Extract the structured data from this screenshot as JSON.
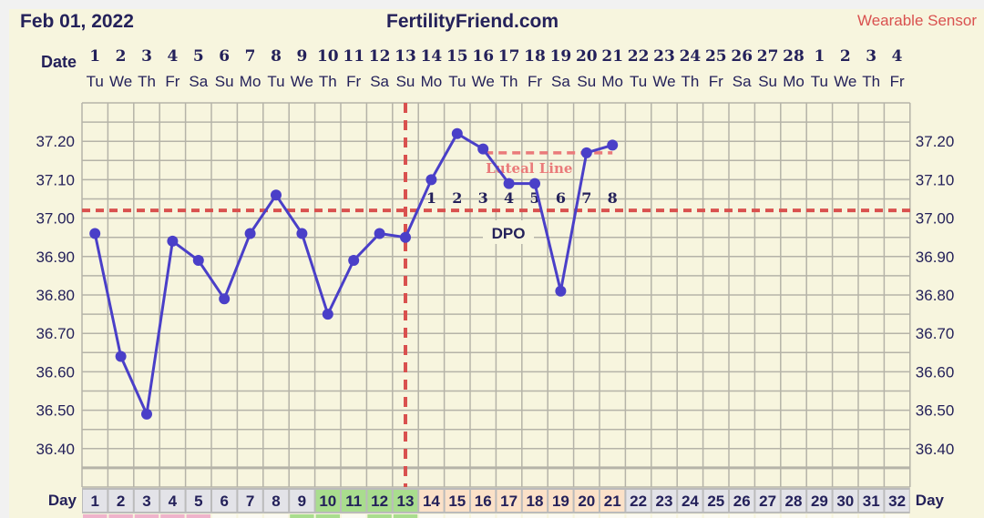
{
  "header": {
    "date": "Feb 01, 2022",
    "site": "FertilityFriend.com",
    "sensor": "Wearable Sensor"
  },
  "colors": {
    "text": "#24215a",
    "series": "#4a3fc8",
    "coverline": "#d9514f",
    "luteal": "#ea7a7a",
    "sensor": "#d9514f",
    "fertile_green": "#a9dd8e",
    "luteal_peach": "#fbe1c8",
    "day_gray": "#e3e3e8",
    "menses_pink": "#efb3cb"
  },
  "chart_data": {
    "type": "line",
    "title": "",
    "row_labels": {
      "date": "Date",
      "day": "Day"
    },
    "dates": [
      "1",
      "2",
      "3",
      "4",
      "5",
      "6",
      "7",
      "8",
      "9",
      "10",
      "11",
      "12",
      "13",
      "14",
      "15",
      "16",
      "17",
      "18",
      "19",
      "20",
      "21",
      "22",
      "23",
      "24",
      "25",
      "26",
      "27",
      "28",
      "1",
      "2",
      "3",
      "4"
    ],
    "weekdays": [
      "Tu",
      "We",
      "Th",
      "Fr",
      "Sa",
      "Su",
      "Mo",
      "Tu",
      "We",
      "Th",
      "Fr",
      "Sa",
      "Su",
      "Mo",
      "Tu",
      "We",
      "Th",
      "Fr",
      "Sa",
      "Su",
      "Mo",
      "Tu",
      "We",
      "Th",
      "Fr",
      "Sa",
      "Su",
      "Mo",
      "Tu",
      "We",
      "Th",
      "Fr"
    ],
    "days": [
      1,
      2,
      3,
      4,
      5,
      6,
      7,
      8,
      9,
      10,
      11,
      12,
      13,
      14,
      15,
      16,
      17,
      18,
      19,
      20,
      21,
      22,
      23,
      24,
      25,
      26,
      27,
      28,
      29,
      30,
      31,
      32
    ],
    "day_cell_types": [
      "gray",
      "gray",
      "gray",
      "gray",
      "gray",
      "gray",
      "gray",
      "gray",
      "gray",
      "green",
      "green",
      "green",
      "green",
      "peach",
      "peach",
      "peach",
      "peach",
      "peach",
      "peach",
      "peach",
      "peach",
      "gray",
      "gray",
      "gray",
      "gray",
      "gray",
      "gray",
      "gray",
      "gray",
      "gray",
      "gray",
      "gray"
    ],
    "bottom_strip_types": [
      "pink",
      "pink",
      "pink",
      "pink",
      "pink",
      "white",
      "white",
      "white",
      "green",
      "green",
      "white",
      "green",
      "green",
      "white",
      "white",
      "white",
      "white",
      "white",
      "white",
      "white",
      "white",
      "white",
      "white",
      "white",
      "white",
      "white",
      "white",
      "white",
      "white",
      "white",
      "white",
      "white"
    ],
    "y_ticks": [
      "37.20",
      "37.10",
      "37.00",
      "36.90",
      "36.80",
      "36.70",
      "36.60",
      "36.50",
      "36.40"
    ],
    "ylim": [
      36.3,
      37.3
    ],
    "grid": true,
    "temperatures": [
      36.96,
      36.64,
      36.49,
      36.94,
      36.89,
      36.79,
      36.96,
      37.06,
      36.96,
      36.75,
      36.89,
      36.96,
      36.95,
      37.1,
      37.22,
      37.18,
      37.09,
      37.09,
      36.81,
      37.17,
      37.19
    ],
    "coverline": 37.02,
    "ovulation_day": 13,
    "luteal_line": {
      "label": "Luteal Line",
      "value": 37.17,
      "from_day": 16,
      "to_day": 21
    },
    "dpo": {
      "label": "DPO",
      "numbers": [
        "1",
        "2",
        "3",
        "4",
        "5",
        "6",
        "7",
        "8"
      ],
      "start_day": 14
    }
  }
}
